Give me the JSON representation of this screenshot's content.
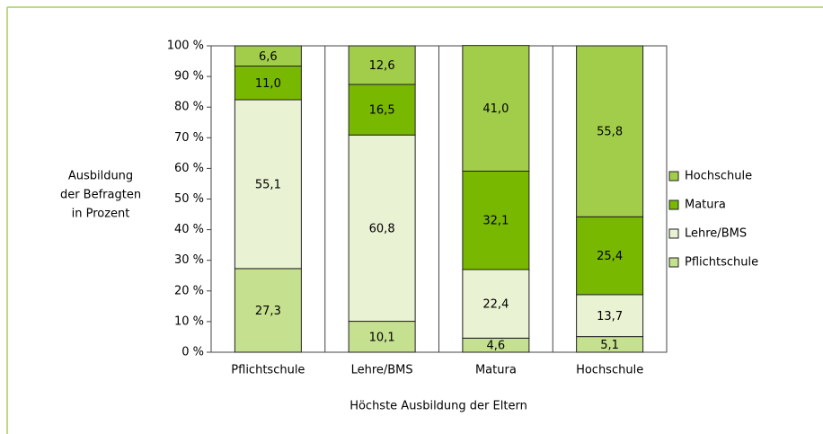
{
  "chart_data": {
    "type": "stacked_bar",
    "y_label": [
      "Ausbildung",
      "der Befragten",
      "in Prozent"
    ],
    "x_label": "Höchste Ausbildung der Eltern",
    "categories": [
      "Pflichtschule",
      "Lehre/BMS",
      "Matura",
      "Hochschule"
    ],
    "series": [
      {
        "name": "Pflichtschule",
        "color": "#c5e08f",
        "values": [
          27.3,
          10.1,
          4.6,
          5.1
        ],
        "value_labels": [
          "27,3",
          "10,1",
          "4,6",
          "5,1"
        ]
      },
      {
        "name": "Lehre/BMS",
        "color": "#e9f2d3",
        "values": [
          55.1,
          60.8,
          22.4,
          13.7
        ],
        "value_labels": [
          "55,1",
          "60,8",
          "22,4",
          "13,7"
        ]
      },
      {
        "name": "Matura",
        "color": "#78b800",
        "values": [
          11.0,
          16.5,
          32.1,
          25.4
        ],
        "value_labels": [
          "11,0",
          "16,5",
          "32,1",
          "25,4"
        ]
      },
      {
        "name": "Hochschule",
        "color": "#a2cd4b",
        "values": [
          6.6,
          12.6,
          41.0,
          55.8
        ],
        "value_labels": [
          "6,6",
          "12,6",
          "41,0",
          "55,8"
        ]
      }
    ],
    "ylim": [
      0,
      100
    ],
    "yticks": [
      {
        "value": 0,
        "label": "0 %"
      },
      {
        "value": 10,
        "label": "10 %"
      },
      {
        "value": 20,
        "label": "20 %"
      },
      {
        "value": 30,
        "label": "30 %"
      },
      {
        "value": 40,
        "label": "40 %"
      },
      {
        "value": 50,
        "label": "50 %"
      },
      {
        "value": 60,
        "label": "60 %"
      },
      {
        "value": 70,
        "label": "70 %"
      },
      {
        "value": 80,
        "label": "80 %"
      },
      {
        "value": 90,
        "label": "90 %"
      },
      {
        "value": 100,
        "label": "100 %"
      }
    ],
    "legend": "right"
  }
}
